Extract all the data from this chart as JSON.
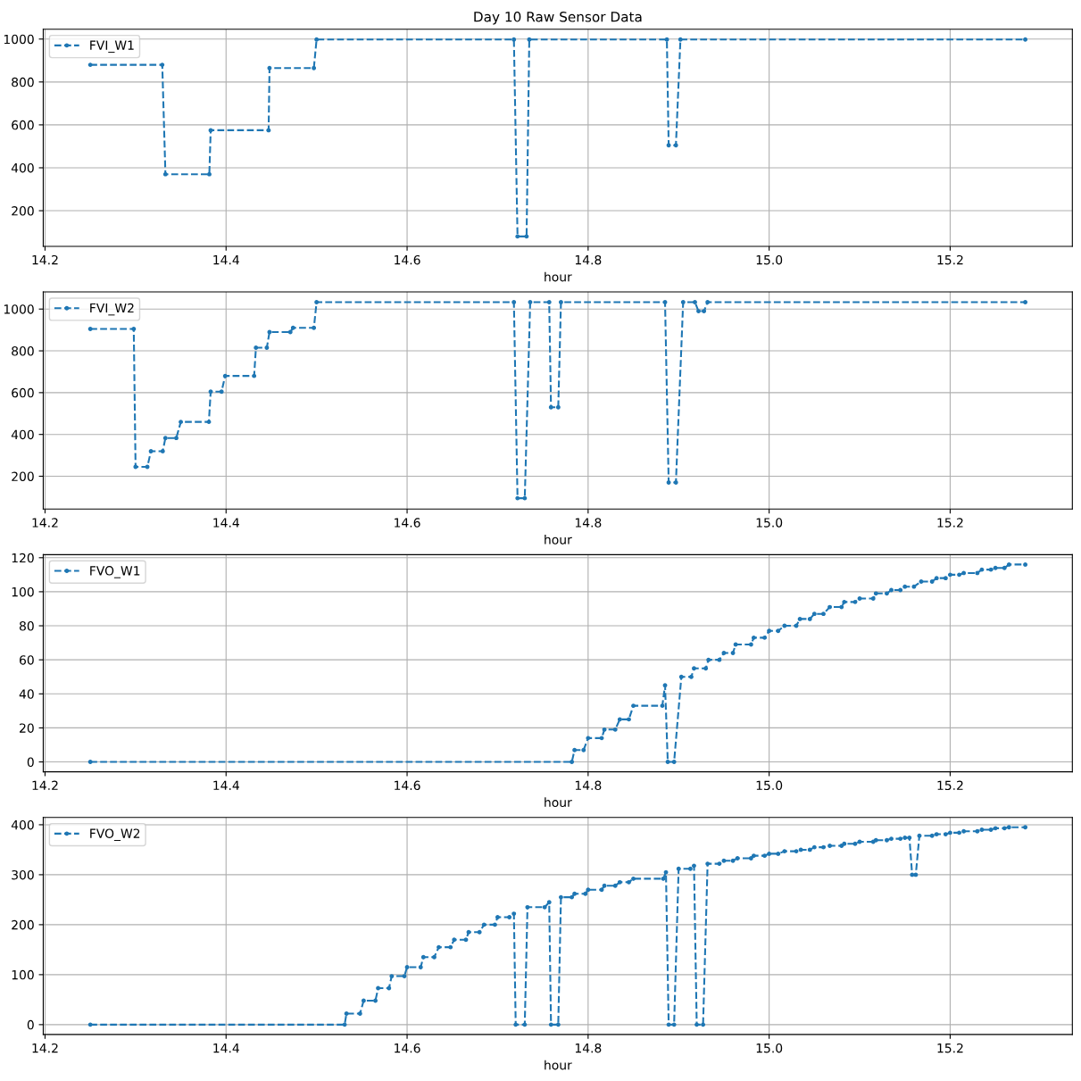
{
  "chart_data": [
    {
      "type": "line",
      "title": "Day 10 Raw Sensor Data",
      "xlabel": "hour",
      "xlim": [
        14.198,
        15.335
      ],
      "xticks": [
        {
          "value": 14.2,
          "label": "14.2"
        },
        {
          "value": 14.4,
          "label": "14.4"
        },
        {
          "value": 14.6,
          "label": "14.6"
        },
        {
          "value": 14.8,
          "label": "14.8"
        },
        {
          "value": 15.0,
          "label": "15.0"
        },
        {
          "value": 15.2,
          "label": "15.2"
        }
      ],
      "ylim": [
        34,
        1046
      ],
      "yticks": [
        200,
        400,
        600,
        800,
        1000
      ],
      "grid": true,
      "legend": "top left",
      "marker": "circle",
      "line_style": "dashed",
      "series": [
        {
          "name": "FVI_W1",
          "color": "#1f77b4",
          "x": [
            14.25,
            14.3295,
            14.333,
            14.3815,
            14.383,
            14.447,
            14.448,
            14.497,
            14.5,
            14.718,
            14.722,
            14.732,
            14.735,
            14.887,
            14.889,
            14.897,
            14.902,
            15.283
          ],
          "values": [
            880,
            880,
            370,
            370,
            575,
            575,
            865,
            865,
            998,
            998,
            80,
            80,
            998,
            998,
            505,
            505,
            998,
            998
          ]
        }
      ]
    },
    {
      "type": "line",
      "xlabel": "hour",
      "xlim": [
        14.198,
        15.335
      ],
      "xticks": [
        {
          "value": 14.2,
          "label": "14.2"
        },
        {
          "value": 14.4,
          "label": "14.4"
        },
        {
          "value": 14.6,
          "label": "14.6"
        },
        {
          "value": 14.8,
          "label": "14.8"
        },
        {
          "value": 15.0,
          "label": "15.0"
        },
        {
          "value": 15.2,
          "label": "15.2"
        }
      ],
      "ylim": [
        43,
        1082
      ],
      "yticks": [
        200,
        400,
        600,
        800,
        1000
      ],
      "grid": true,
      "legend": "top left",
      "marker": "circle",
      "line_style": "dashed",
      "series": [
        {
          "name": "FVI_W2",
          "color": "#1f77b4",
          "x": [
            14.25,
            14.298,
            14.3,
            14.313,
            14.317,
            14.33,
            14.333,
            14.345,
            14.35,
            14.381,
            14.383,
            14.395,
            14.399,
            14.431,
            14.433,
            14.445,
            14.448,
            14.471,
            14.474,
            14.497,
            14.5,
            14.718,
            14.722,
            14.73,
            14.736,
            14.757,
            14.759,
            14.767,
            14.77,
            14.885,
            14.889,
            14.897,
            14.905,
            14.918,
            14.922,
            14.928,
            14.932,
            15.283
          ],
          "values": [
            905,
            905,
            245,
            245,
            320,
            320,
            383,
            383,
            460,
            460,
            605,
            605,
            680,
            680,
            815,
            815,
            890,
            890,
            910,
            910,
            1033,
            1033,
            95,
            95,
            1033,
            1033,
            530,
            530,
            1033,
            1033,
            170,
            170,
            1033,
            1033,
            990,
            990,
            1033,
            1033
          ]
        }
      ]
    },
    {
      "type": "line",
      "xlabel": "hour",
      "xlim": [
        14.198,
        15.335
      ],
      "xticks": [
        {
          "value": 14.2,
          "label": "14.2"
        },
        {
          "value": 14.4,
          "label": "14.4"
        },
        {
          "value": 14.6,
          "label": "14.6"
        },
        {
          "value": 14.8,
          "label": "14.8"
        },
        {
          "value": 15.0,
          "label": "15.0"
        },
        {
          "value": 15.2,
          "label": "15.2"
        }
      ],
      "ylim": [
        -5.8,
        121.8
      ],
      "yticks": [
        0,
        20,
        40,
        60,
        80,
        100,
        120
      ],
      "grid": true,
      "legend": "top left",
      "marker": "circle",
      "line_style": "dashed",
      "series": [
        {
          "name": "FVO_W1",
          "color": "#1f77b4",
          "x": [
            14.25,
            14.782,
            14.785,
            14.795,
            14.8,
            14.815,
            14.818,
            14.83,
            14.835,
            14.845,
            14.85,
            14.882,
            14.885,
            14.888,
            14.895,
            14.903,
            14.914,
            14.917,
            14.93,
            14.933,
            14.945,
            14.95,
            14.96,
            14.963,
            14.98,
            14.983,
            14.995,
            15.0,
            15.01,
            15.017,
            15.03,
            15.034,
            15.045,
            15.05,
            15.06,
            15.067,
            15.08,
            15.083,
            15.095,
            15.1,
            15.115,
            15.118,
            15.13,
            15.135,
            15.145,
            15.15,
            15.16,
            15.168,
            15.18,
            15.185,
            15.195,
            15.2,
            15.21,
            15.215,
            15.23,
            15.235,
            15.245,
            15.25,
            15.26,
            15.265,
            15.283
          ],
          "values": [
            0,
            0,
            7,
            7,
            14,
            14,
            19,
            19,
            25,
            25,
            33,
            33,
            45,
            0,
            0,
            50,
            50,
            55,
            55,
            60,
            60,
            64,
            64,
            69,
            69,
            73,
            73,
            77,
            77,
            80,
            80,
            84,
            84,
            87,
            87,
            91,
            91,
            94,
            94,
            96,
            96,
            99,
            99,
            101,
            101,
            103,
            103,
            106,
            106,
            108,
            108,
            110,
            110,
            111,
            111,
            113,
            113,
            114,
            114,
            116,
            116
          ]
        }
      ]
    },
    {
      "type": "line",
      "xlabel": "hour",
      "xlim": [
        14.198,
        15.335
      ],
      "xticks": [
        {
          "value": 14.2,
          "label": "14.2"
        },
        {
          "value": 14.4,
          "label": "14.4"
        },
        {
          "value": 14.6,
          "label": "14.6"
        },
        {
          "value": 14.8,
          "label": "14.8"
        },
        {
          "value": 15.0,
          "label": "15.0"
        },
        {
          "value": 15.2,
          "label": "15.2"
        }
      ],
      "ylim": [
        -19.75,
        414.75
      ],
      "yticks": [
        0,
        100,
        200,
        300,
        400
      ],
      "grid": true,
      "legend": "top left",
      "marker": "circle",
      "line_style": "dashed",
      "series": [
        {
          "name": "FVO_W2",
          "color": "#1f77b4",
          "x": [
            14.25,
            14.531,
            14.533,
            14.548,
            14.552,
            14.565,
            14.568,
            14.58,
            14.583,
            14.597,
            14.6,
            14.615,
            14.618,
            14.63,
            14.635,
            14.648,
            14.652,
            14.665,
            14.668,
            14.68,
            14.685,
            14.697,
            14.7,
            14.713,
            14.718,
            14.72,
            14.73,
            14.733,
            14.752,
            14.757,
            14.759,
            14.767,
            14.77,
            14.782,
            14.785,
            14.797,
            14.8,
            14.815,
            14.818,
            14.83,
            14.835,
            14.845,
            14.85,
            14.883,
            14.886,
            14.889,
            14.895,
            14.9,
            14.913,
            14.917,
            14.92,
            14.927,
            14.932,
            14.945,
            14.95,
            14.96,
            14.965,
            14.98,
            14.983,
            14.995,
            15.0,
            15.01,
            15.017,
            15.03,
            15.035,
            15.045,
            15.05,
            15.06,
            15.067,
            15.08,
            15.083,
            15.095,
            15.1,
            15.115,
            15.118,
            15.13,
            15.135,
            15.145,
            15.15,
            15.155,
            15.158,
            15.162,
            15.166,
            15.18,
            15.185,
            15.195,
            15.2,
            15.21,
            15.215,
            15.23,
            15.235,
            15.245,
            15.25,
            15.26,
            15.265,
            15.283
          ],
          "values": [
            0,
            0,
            22,
            22,
            48,
            48,
            73,
            73,
            97,
            97,
            115,
            115,
            135,
            135,
            155,
            155,
            170,
            170,
            185,
            185,
            200,
            200,
            215,
            215,
            222,
            0,
            0,
            235,
            235,
            245,
            0,
            0,
            255,
            255,
            262,
            262,
            270,
            270,
            278,
            278,
            285,
            285,
            292,
            292,
            305,
            0,
            0,
            312,
            312,
            318,
            0,
            0,
            322,
            322,
            328,
            328,
            333,
            333,
            338,
            338,
            342,
            342,
            347,
            347,
            350,
            350,
            355,
            355,
            358,
            358,
            362,
            362,
            366,
            366,
            369,
            369,
            372,
            372,
            374,
            374,
            300,
            300,
            378,
            378,
            381,
            381,
            384,
            384,
            387,
            387,
            390,
            390,
            393,
            393,
            395,
            395
          ]
        }
      ]
    }
  ]
}
